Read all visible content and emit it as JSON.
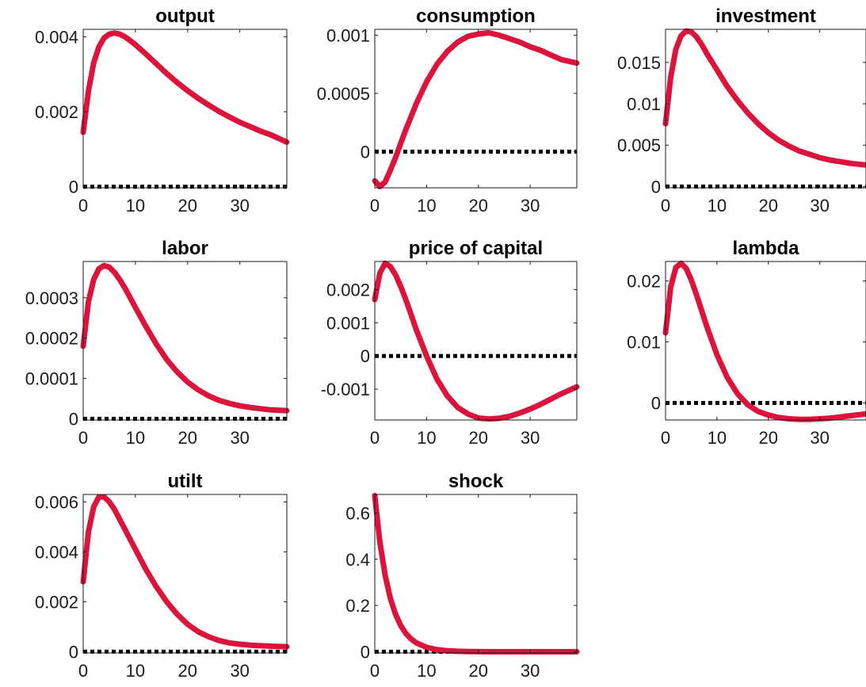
{
  "chart_data": [
    {
      "type": "line",
      "title": "output",
      "xlim": [
        0,
        39
      ],
      "ylim": [
        -3e-05,
        0.0042
      ],
      "xticks": [
        0,
        10,
        20,
        30
      ],
      "yticks": [
        0,
        0.002,
        0.004
      ],
      "ytick_labels": [
        "0",
        "0.002",
        "0.004"
      ],
      "x": [
        0,
        1,
        2,
        3,
        4,
        5,
        6,
        7,
        8,
        9,
        10,
        12,
        14,
        16,
        18,
        20,
        22,
        24,
        26,
        28,
        30,
        32,
        34,
        36,
        39
      ],
      "series": [
        {
          "values": [
            0.00145,
            0.00255,
            0.0033,
            0.00373,
            0.00397,
            0.00407,
            0.0041,
            0.00407,
            0.004,
            0.0039,
            0.00379,
            0.00354,
            0.00328,
            0.00302,
            0.00278,
            0.00256,
            0.00236,
            0.00218,
            0.00201,
            0.00186,
            0.00172,
            0.0016,
            0.00148,
            0.00138,
            0.00119
          ]
        },
        {
          "values": [
            0,
            0,
            0,
            0,
            0,
            0,
            0,
            0,
            0,
            0,
            0,
            0,
            0,
            0,
            0,
            0,
            0,
            0,
            0,
            0,
            0,
            0,
            0,
            0,
            0
          ]
        }
      ]
    },
    {
      "type": "line",
      "title": "consumption",
      "xlim": [
        0,
        39
      ],
      "ylim": [
        -0.00031,
        0.00105
      ],
      "xticks": [
        0,
        10,
        20,
        30
      ],
      "yticks": [
        0,
        0.0005,
        0.001
      ],
      "ytick_labels": [
        "0",
        "0.0005",
        "0.001"
      ],
      "x": [
        0,
        1,
        2,
        3,
        4,
        5,
        6,
        7,
        8,
        10,
        12,
        14,
        16,
        18,
        20,
        22,
        24,
        26,
        28,
        30,
        32,
        34,
        36,
        39
      ],
      "series": [
        {
          "values": [
            -0.00025,
            -0.0003,
            -0.00026,
            -0.00016,
            -5e-05,
            7e-05,
            0.00019,
            0.0003,
            0.00041,
            0.0006,
            0.00075,
            0.00086,
            0.00094,
            0.00099,
            0.00101,
            0.00102,
            0.001,
            0.00097,
            0.00094,
            0.0009,
            0.00087,
            0.00083,
            0.00079,
            0.00076
          ]
        },
        {
          "values": [
            0,
            0,
            0,
            0,
            0,
            0,
            0,
            0,
            0,
            0,
            0,
            0,
            0,
            0,
            0,
            0,
            0,
            0,
            0,
            0,
            0,
            0,
            0,
            0
          ]
        }
      ]
    },
    {
      "type": "line",
      "title": "investment",
      "xlim": [
        0,
        39
      ],
      "ylim": [
        -0.00015,
        0.019
      ],
      "xticks": [
        0,
        10,
        20,
        30
      ],
      "yticks": [
        0,
        0.005,
        0.01,
        0.015
      ],
      "ytick_labels": [
        "0",
        "0.005",
        "0.01",
        "0.015"
      ],
      "x": [
        0,
        1,
        2,
        3,
        4,
        5,
        6,
        7,
        8,
        10,
        12,
        14,
        16,
        18,
        20,
        22,
        24,
        26,
        28,
        30,
        32,
        34,
        36,
        39
      ],
      "series": [
        {
          "values": [
            0.0076,
            0.0132,
            0.0166,
            0.0182,
            0.0188,
            0.0187,
            0.0181,
            0.0172,
            0.0161,
            0.0141,
            0.0121,
            0.0104,
            0.0089,
            0.0076,
            0.0065,
            0.0056,
            0.0049,
            0.0043,
            0.0039,
            0.0035,
            0.0032,
            0.003,
            0.0028,
            0.0026
          ]
        },
        {
          "values": [
            0,
            0,
            0,
            0,
            0,
            0,
            0,
            0,
            0,
            0,
            0,
            0,
            0,
            0,
            0,
            0,
            0,
            0,
            0,
            0,
            0,
            0,
            0,
            0
          ]
        }
      ]
    },
    {
      "type": "line",
      "title": "labor",
      "xlim": [
        0,
        39
      ],
      "ylim": [
        -3e-06,
        0.00039
      ],
      "xticks": [
        0,
        10,
        20,
        30
      ],
      "yticks": [
        0,
        0.0001,
        0.0002,
        0.0003
      ],
      "ytick_labels": [
        "0",
        "0.0001",
        "0.0002",
        "0.0003"
      ],
      "x": [
        0,
        1,
        2,
        3,
        4,
        5,
        6,
        7,
        8,
        10,
        12,
        14,
        16,
        18,
        20,
        22,
        24,
        26,
        28,
        30,
        32,
        34,
        36,
        39
      ],
      "series": [
        {
          "values": [
            0.00018,
            0.00029,
            0.000345,
            0.000372,
            0.00038,
            0.000376,
            0.000363,
            0.000345,
            0.000324,
            0.000276,
            0.000229,
            0.000185,
            0.000147,
            0.000116,
            9.1e-05,
            7.2e-05,
            5.7e-05,
            4.6e-05,
            3.8e-05,
            3.2e-05,
            2.8e-05,
            2.5e-05,
            2.2e-05,
            2e-05
          ]
        },
        {
          "values": [
            0,
            0,
            0,
            0,
            0,
            0,
            0,
            0,
            0,
            0,
            0,
            0,
            0,
            0,
            0,
            0,
            0,
            0,
            0,
            0,
            0,
            0,
            0,
            0
          ]
        }
      ]
    },
    {
      "type": "line",
      "title": "price of capital",
      "xlim": [
        0,
        39
      ],
      "ylim": [
        -0.00193,
        0.00285
      ],
      "xticks": [
        0,
        10,
        20,
        30
      ],
      "yticks": [
        -0.001,
        0,
        0.001,
        0.002
      ],
      "ytick_labels": [
        "-0.001",
        "0",
        "0.001",
        "0.002"
      ],
      "x": [
        0,
        1,
        2,
        3,
        4,
        5,
        6,
        7,
        8,
        10,
        12,
        14,
        16,
        18,
        20,
        22,
        24,
        26,
        28,
        30,
        32,
        34,
        36,
        39
      ],
      "series": [
        {
          "values": [
            0.0017,
            0.0025,
            0.0028,
            0.0027,
            0.00245,
            0.0021,
            0.0017,
            0.00125,
            0.0008,
            0.0,
            -0.0007,
            -0.0012,
            -0.00155,
            -0.00175,
            -0.00187,
            -0.0019,
            -0.00188,
            -0.00182,
            -0.00172,
            -0.0016,
            -0.00146,
            -0.0013,
            -0.00114,
            -0.00093
          ]
        },
        {
          "values": [
            0,
            0,
            0,
            0,
            0,
            0,
            0,
            0,
            0,
            0,
            0,
            0,
            0,
            0,
            0,
            0,
            0,
            0,
            0,
            0,
            0,
            0,
            0,
            0
          ]
        }
      ]
    },
    {
      "type": "line",
      "title": "lambda",
      "xlim": [
        0,
        39
      ],
      "ylim": [
        -0.0028,
        0.0232
      ],
      "xticks": [
        0,
        10,
        20,
        30
      ],
      "yticks": [
        0,
        0.01,
        0.02
      ],
      "ytick_labels": [
        "0",
        "0.01",
        "0.02"
      ],
      "x": [
        0,
        1,
        2,
        3,
        4,
        5,
        6,
        7,
        8,
        10,
        12,
        14,
        16,
        18,
        20,
        22,
        24,
        26,
        28,
        30,
        32,
        34,
        36,
        39
      ],
      "series": [
        {
          "values": [
            0.0115,
            0.019,
            0.0222,
            0.0229,
            0.0221,
            0.0202,
            0.0178,
            0.0152,
            0.0126,
            0.0079,
            0.0042,
            0.0015,
            -0.0003,
            -0.0014,
            -0.002,
            -0.0024,
            -0.0026,
            -0.0027,
            -0.0027,
            -0.0026,
            -0.0025,
            -0.0023,
            -0.0021,
            -0.0018
          ]
        },
        {
          "values": [
            0,
            0,
            0,
            0,
            0,
            0,
            0,
            0,
            0,
            0,
            0,
            0,
            0,
            0,
            0,
            0,
            0,
            0,
            0,
            0,
            0,
            0,
            0,
            0
          ]
        }
      ]
    },
    {
      "type": "line",
      "title": "utilt",
      "xlim": [
        0,
        39
      ],
      "ylim": [
        -5e-05,
        0.0063
      ],
      "xticks": [
        0,
        10,
        20,
        30
      ],
      "yticks": [
        0,
        0.002,
        0.004,
        0.006
      ],
      "ytick_labels": [
        "0",
        "0.002",
        "0.004",
        "0.006"
      ],
      "x": [
        0,
        1,
        2,
        3,
        4,
        5,
        6,
        7,
        8,
        10,
        12,
        14,
        16,
        18,
        20,
        22,
        24,
        26,
        28,
        30,
        32,
        34,
        36,
        39
      ],
      "series": [
        {
          "values": [
            0.0028,
            0.0048,
            0.0058,
            0.0062,
            0.0062,
            0.006,
            0.0057,
            0.0053,
            0.0049,
            0.0041,
            0.0033,
            0.0026,
            0.002,
            0.0015,
            0.0011,
            0.0008,
            0.0006,
            0.00045,
            0.00035,
            0.0003,
            0.00026,
            0.00024,
            0.00022,
            0.0002
          ]
        },
        {
          "values": [
            0,
            0,
            0,
            0,
            0,
            0,
            0,
            0,
            0,
            0,
            0,
            0,
            0,
            0,
            0,
            0,
            0,
            0,
            0,
            0,
            0,
            0,
            0,
            0
          ]
        }
      ]
    },
    {
      "type": "line",
      "title": "shock",
      "xlim": [
        0,
        39
      ],
      "ylim": [
        -0.005,
        0.68
      ],
      "xticks": [
        0,
        10,
        20,
        30
      ],
      "yticks": [
        0,
        0.2,
        0.4,
        0.6
      ],
      "ytick_labels": [
        "0",
        "0.2",
        "0.4",
        "0.6"
      ],
      "x": [
        0,
        1,
        2,
        3,
        4,
        5,
        6,
        7,
        8,
        10,
        12,
        14,
        16,
        18,
        20,
        22,
        24,
        26,
        28,
        30,
        32,
        34,
        36,
        39
      ],
      "series": [
        {
          "values": [
            0.675,
            0.4725,
            0.331,
            0.2315,
            0.162,
            0.1134,
            0.0794,
            0.0556,
            0.0389,
            0.0191,
            0.0093,
            0.0046,
            0.0022,
            0.0011,
            0.0005,
            0.0003,
            0.0001,
            0.0001,
            0,
            0,
            0,
            0,
            0,
            0
          ]
        },
        {
          "values": [
            0,
            0,
            0,
            0,
            0,
            0,
            0,
            0,
            0,
            0,
            0,
            0,
            0,
            0,
            0,
            0,
            0,
            0,
            0,
            0,
            0,
            0,
            0,
            0
          ]
        }
      ]
    }
  ],
  "style": {
    "response_color": "#dc143c",
    "zero_line_color": "#000000",
    "axes_color": "#1a1a1a",
    "grid": false
  }
}
